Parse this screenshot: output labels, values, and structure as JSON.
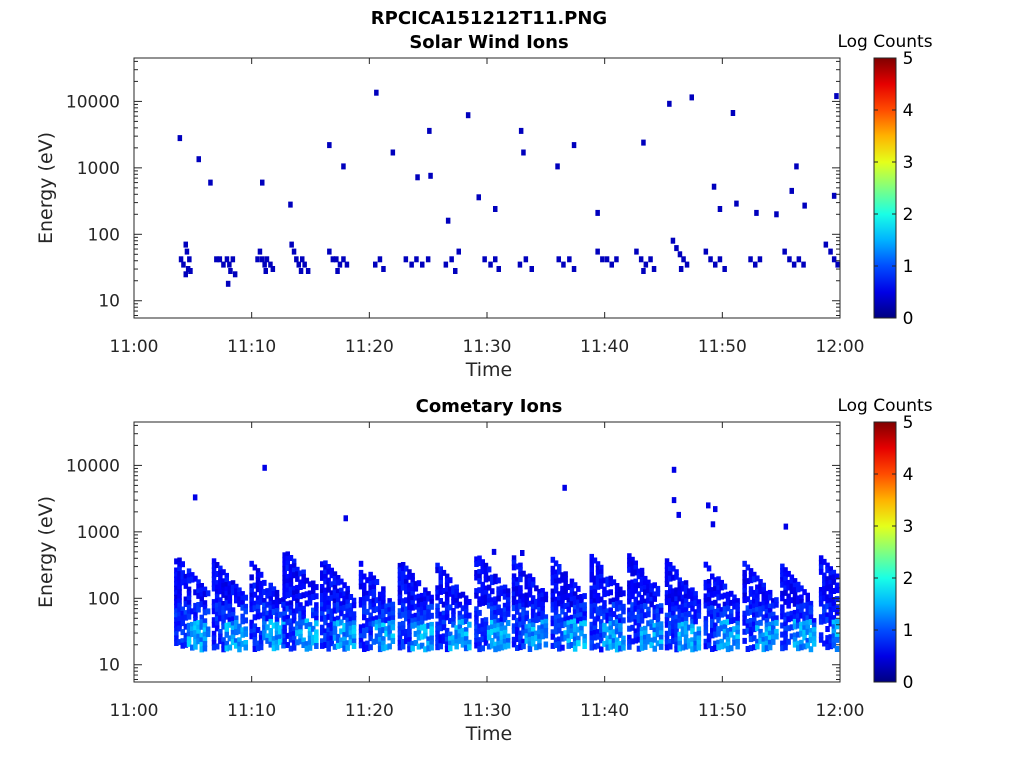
{
  "figure_title": "RPCICA151212T11.PNG",
  "chart_data": [
    {
      "type": "heatmap",
      "title": "Solar Wind Ions",
      "xlabel": "Time",
      "ylabel": "Energy (eV)",
      "x_ticks": [
        "11:00",
        "11:10",
        "11:20",
        "11:30",
        "11:40",
        "11:50",
        "12:00"
      ],
      "x_range": [
        "11:00",
        "12:00"
      ],
      "y_scale": "log",
      "y_ticks": [
        "10",
        "100",
        "1000",
        "10000"
      ],
      "y_range": [
        5.5,
        45000
      ],
      "colorbar": {
        "label": "Log Counts",
        "range": [
          0,
          5
        ],
        "ticks": [
          "0",
          "1",
          "2",
          "3",
          "4",
          "5"
        ],
        "colormap": "jet"
      },
      "x_unit": "minutes after 11:00",
      "z_unit": "log counts",
      "points": [
        [
          4.0,
          42,
          0.3
        ],
        [
          4.2,
          35,
          0.3
        ],
        [
          4.4,
          70,
          0.3
        ],
        [
          4.5,
          55,
          0.3
        ],
        [
          4.7,
          42,
          0.3
        ],
        [
          4.6,
          30,
          0.3
        ],
        [
          4.8,
          28,
          0.3
        ],
        [
          4.4,
          25,
          0.3
        ],
        [
          7.0,
          42,
          0.3
        ],
        [
          7.3,
          42,
          0.3
        ],
        [
          7.6,
          35,
          0.3
        ],
        [
          7.9,
          42,
          0.3
        ],
        [
          8.1,
          35,
          0.3
        ],
        [
          8.4,
          42,
          0.3
        ],
        [
          8.2,
          28,
          0.3
        ],
        [
          8.6,
          25,
          0.3
        ],
        [
          8.0,
          18,
          0.3
        ],
        [
          10.5,
          42,
          0.3
        ],
        [
          10.7,
          55,
          0.3
        ],
        [
          10.9,
          42,
          0.3
        ],
        [
          11.1,
          35,
          0.3
        ],
        [
          11.3,
          42,
          0.3
        ],
        [
          11.6,
          35,
          0.3
        ],
        [
          11.8,
          30,
          0.3
        ],
        [
          11.2,
          28,
          0.3
        ],
        [
          13.4,
          70,
          0.3
        ],
        [
          13.6,
          55,
          0.3
        ],
        [
          13.8,
          42,
          0.3
        ],
        [
          14.0,
          35,
          0.3
        ],
        [
          14.3,
          42,
          0.3
        ],
        [
          14.5,
          35,
          0.3
        ],
        [
          14.2,
          28,
          0.3
        ],
        [
          14.8,
          28,
          0.3
        ],
        [
          16.6,
          55,
          0.3
        ],
        [
          16.9,
          42,
          0.3
        ],
        [
          17.2,
          42,
          0.3
        ],
        [
          17.5,
          35,
          0.3
        ],
        [
          17.8,
          42,
          0.3
        ],
        [
          18.1,
          35,
          0.3
        ],
        [
          17.3,
          28,
          0.3
        ],
        [
          20.5,
          35,
          0.3
        ],
        [
          20.9,
          42,
          0.3
        ],
        [
          21.2,
          30,
          0.3
        ],
        [
          23.1,
          42,
          0.3
        ],
        [
          23.6,
          35,
          0.3
        ],
        [
          24.0,
          42,
          0.3
        ],
        [
          24.5,
          35,
          0.3
        ],
        [
          25.0,
          42,
          0.3
        ],
        [
          26.5,
          35,
          0.3
        ],
        [
          27.0,
          42,
          0.3
        ],
        [
          27.3,
          28,
          0.3
        ],
        [
          27.6,
          55,
          0.3
        ],
        [
          29.8,
          42,
          0.3
        ],
        [
          30.3,
          35,
          0.3
        ],
        [
          30.7,
          42,
          0.3
        ],
        [
          31.0,
          30,
          0.3
        ],
        [
          32.8,
          35,
          0.3
        ],
        [
          33.3,
          42,
          0.3
        ],
        [
          33.8,
          30,
          0.3
        ],
        [
          36.1,
          42,
          0.3
        ],
        [
          36.5,
          35,
          0.3
        ],
        [
          37.0,
          42,
          0.3
        ],
        [
          37.4,
          30,
          0.3
        ],
        [
          39.4,
          55,
          0.3
        ],
        [
          39.8,
          42,
          0.3
        ],
        [
          40.2,
          42,
          0.3
        ],
        [
          40.6,
          35,
          0.3
        ],
        [
          41.0,
          42,
          0.3
        ],
        [
          42.7,
          55,
          0.3
        ],
        [
          43.1,
          42,
          0.3
        ],
        [
          43.5,
          35,
          0.3
        ],
        [
          43.9,
          42,
          0.3
        ],
        [
          44.2,
          30,
          0.3
        ],
        [
          43.3,
          28,
          0.3
        ],
        [
          45.8,
          80,
          0.3
        ],
        [
          46.1,
          62,
          0.3
        ],
        [
          46.4,
          50,
          0.3
        ],
        [
          46.7,
          42,
          0.3
        ],
        [
          47.0,
          35,
          0.3
        ],
        [
          46.5,
          30,
          0.3
        ],
        [
          48.6,
          55,
          0.3
        ],
        [
          49.0,
          42,
          0.3
        ],
        [
          49.4,
          35,
          0.3
        ],
        [
          49.8,
          42,
          0.3
        ],
        [
          50.2,
          30,
          0.3
        ],
        [
          52.4,
          42,
          0.3
        ],
        [
          52.8,
          35,
          0.3
        ],
        [
          53.2,
          42,
          0.3
        ],
        [
          55.3,
          55,
          0.3
        ],
        [
          55.7,
          42,
          0.3
        ],
        [
          56.1,
          35,
          0.3
        ],
        [
          56.5,
          42,
          0.3
        ],
        [
          56.9,
          35,
          0.3
        ],
        [
          58.8,
          70,
          0.3
        ],
        [
          59.2,
          55,
          0.3
        ],
        [
          59.5,
          42,
          0.3
        ],
        [
          59.8,
          35,
          0.3
        ],
        [
          3.9,
          2800,
          0.3
        ],
        [
          5.5,
          1350,
          0.3
        ],
        [
          6.5,
          600,
          0.3
        ],
        [
          10.9,
          600,
          0.3
        ],
        [
          13.3,
          280,
          0.3
        ],
        [
          16.6,
          2200,
          0.3
        ],
        [
          17.8,
          1050,
          0.3
        ],
        [
          20.6,
          13500,
          0.3
        ],
        [
          22.0,
          1700,
          0.3
        ],
        [
          25.1,
          3600,
          0.3
        ],
        [
          28.4,
          6200,
          0.3
        ],
        [
          32.9,
          3600,
          0.3
        ],
        [
          33.1,
          1700,
          0.3
        ],
        [
          36.0,
          1050,
          0.3
        ],
        [
          37.4,
          2200,
          0.3
        ],
        [
          39.4,
          210,
          0.3
        ],
        [
          43.3,
          2400,
          0.3
        ],
        [
          45.5,
          9200,
          0.3
        ],
        [
          47.4,
          11500,
          0.3
        ],
        [
          50.9,
          6700,
          0.3
        ],
        [
          49.3,
          520,
          0.3
        ],
        [
          49.8,
          240,
          0.3
        ],
        [
          51.2,
          290,
          0.3
        ],
        [
          52.9,
          210,
          0.3
        ],
        [
          54.6,
          200,
          0.3
        ],
        [
          56.3,
          1050,
          0.3
        ],
        [
          55.9,
          450,
          0.3
        ],
        [
          57.0,
          270,
          0.3
        ],
        [
          59.5,
          380,
          0.3
        ],
        [
          59.7,
          12000,
          0.3
        ],
        [
          26.7,
          160,
          0.3
        ],
        [
          29.3,
          360,
          0.3
        ],
        [
          30.7,
          240,
          0.3
        ],
        [
          24.1,
          720,
          0.3
        ],
        [
          25.2,
          760,
          0.3
        ]
      ]
    },
    {
      "type": "heatmap",
      "title": "Cometary Ions",
      "xlabel": "Time",
      "ylabel": "Energy (eV)",
      "x_ticks": [
        "11:00",
        "11:10",
        "11:20",
        "11:30",
        "11:40",
        "11:50",
        "12:00"
      ],
      "x_range": [
        "11:00",
        "12:00"
      ],
      "y_scale": "log",
      "y_ticks": [
        "10",
        "100",
        "1000",
        "10000"
      ],
      "y_range": [
        5.5,
        45000
      ],
      "colorbar": {
        "label": "Log Counts",
        "range": [
          0,
          5
        ],
        "ticks": [
          "0",
          "1",
          "2",
          "3",
          "4",
          "5"
        ],
        "colormap": "jet"
      },
      "x_unit": "minutes after 11:00",
      "z_unit": "log counts",
      "bursts_start_min": [
        3.6,
        6.8,
        10.0,
        12.8,
        16.0,
        19.3,
        22.6,
        25.8,
        29.1,
        32.3,
        35.6,
        38.9,
        42.1,
        45.3,
        48.6,
        51.9,
        55.1,
        58.4
      ],
      "bursts_top_eV": [
        420,
        360,
        330,
        520,
        380,
        330,
        360,
        310,
        450,
        400,
        380,
        420,
        430,
        360,
        320,
        330,
        300,
        400
      ],
      "isolated_points": [
        [
          5.2,
          3300,
          0.5
        ],
        [
          11.1,
          9200,
          0.5
        ],
        [
          18.0,
          1600,
          0.5
        ],
        [
          36.6,
          4600,
          0.5
        ],
        [
          45.9,
          8600,
          0.5
        ],
        [
          45.9,
          3000,
          0.5
        ],
        [
          46.3,
          1800,
          0.5
        ],
        [
          48.8,
          2500,
          0.5
        ],
        [
          49.2,
          1300,
          0.5
        ],
        [
          49.4,
          2200,
          0.5
        ],
        [
          55.4,
          1200,
          0.5
        ],
        [
          30.6,
          500,
          0.5
        ],
        [
          33.0,
          480,
          0.5
        ]
      ]
    }
  ]
}
